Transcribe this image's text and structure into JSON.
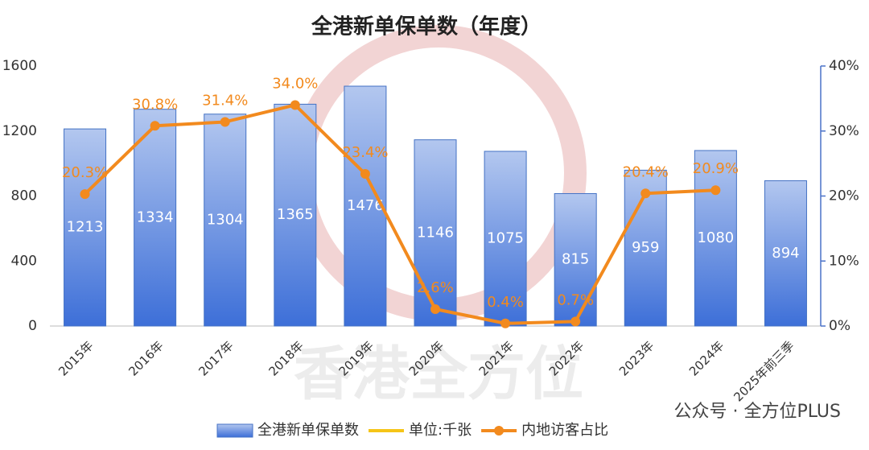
{
  "chart_data": {
    "type": "bar",
    "title": "全港新单保单数（年度）",
    "categories": [
      "2015年",
      "2016年",
      "2017年",
      "2018年",
      "2019年",
      "2020年",
      "2021年",
      "2022年",
      "2023年",
      "2024年",
      "2025年前三季"
    ],
    "series": [
      {
        "name": "全港新单保单数",
        "type": "bar",
        "color": "#4472c4",
        "values": [
          1213,
          1334,
          1304,
          1365,
          1476,
          1146,
          1075,
          815,
          959,
          1080,
          894
        ]
      },
      {
        "name": "内地访客占比",
        "type": "line",
        "axis": "y2",
        "color": "#f28a1e",
        "values": [
          20.3,
          30.8,
          31.4,
          34.0,
          23.4,
          2.6,
          0.4,
          0.7,
          20.4,
          20.9,
          null
        ],
        "value_labels": [
          "20.3%",
          "30.8%",
          "31.4%",
          "34.0%",
          "23.4%",
          "2.6%",
          "0.4%",
          "0.7%",
          "20.4%",
          "20.9%",
          null
        ]
      }
    ],
    "unit_legend": {
      "name": "单位:千张",
      "color": "#f5c518"
    },
    "ylim": [
      0,
      1600
    ],
    "yticks": [
      0,
      400,
      800,
      1200,
      1600
    ],
    "y2lim": [
      0,
      40
    ],
    "y2ticks": [
      {
        "value": 0,
        "label": "0%"
      },
      {
        "value": 10,
        "label": "10%"
      },
      {
        "value": 20,
        "label": "20%"
      },
      {
        "value": 30,
        "label": "30%"
      },
      {
        "value": 40,
        "label": "40%"
      }
    ],
    "watermark": "香港全方位",
    "source": "公众号 · 全方位PLUS"
  }
}
